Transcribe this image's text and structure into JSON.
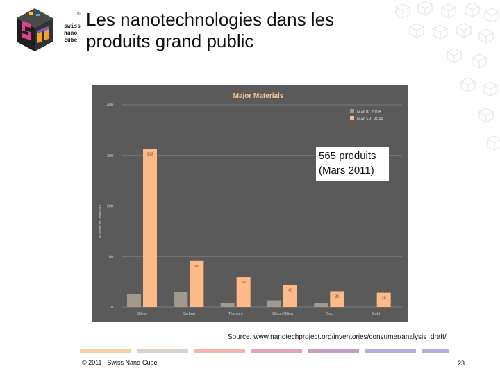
{
  "slide": {
    "title_line1": "Les nanotechnologies dans les",
    "title_line2": "produits grand public",
    "logo_words": [
      "swiss",
      "nano",
      "cube"
    ],
    "source": "Source: www.nanotechproject.org/inventories/consumer/analysis_draft/",
    "footer_left": "© 2011 - Swiss Nano-Cube",
    "page_number": "23"
  },
  "colors": {
    "chart_bg": "#5a5a5a",
    "series_2006": "#a19a8a",
    "series_2011": "#fdb987",
    "title_text": "#f6c69b",
    "footer_segments": [
      "#f3d2a4",
      "#d9d3cb",
      "#f2b4ab",
      "#e0a6b8",
      "#c49cc6",
      "#b7acd6",
      "#b5aee0"
    ]
  },
  "chart_data": {
    "type": "bar",
    "title": "Major Materials",
    "ylabel": "Number of Products",
    "xlabel": "",
    "ylim": [
      0,
      400
    ],
    "yticks": [
      0,
      100,
      200,
      300,
      400
    ],
    "categories": [
      "Silver",
      "Carbon",
      "Titanium",
      "Silicon/Silica",
      "Zinc",
      "Gold"
    ],
    "series": [
      {
        "name": "Mar 8, 2006",
        "values": [
          25,
          29,
          8,
          13,
          8,
          0
        ]
      },
      {
        "name": "Mar 10, 2011",
        "values": [
          313,
          91,
          59,
          43,
          31,
          28
        ]
      }
    ],
    "legend_position": "top-right",
    "annotation_line1": "565 produits",
    "annotation_line2": "(Mars 2011)"
  }
}
